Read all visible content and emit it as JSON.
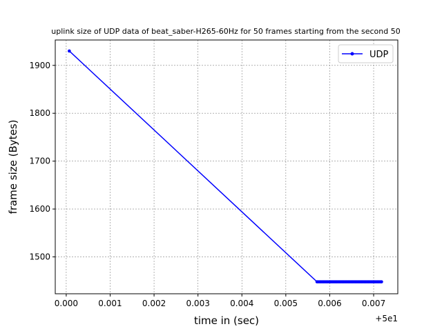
{
  "chart_data": {
    "type": "line",
    "title": "uplink size of UDP data of beat_saber-H265-60Hz for 50 frames starting from the second 50",
    "xlabel": "time in (sec)",
    "ylabel": "frame size (Bytes)",
    "x_offset_label": "+5e1",
    "xlim": [
      49.99975,
      50.00755
    ],
    "ylim": [
      1423,
      1953
    ],
    "x_ticks": [
      50.0,
      50.001,
      50.002,
      50.003,
      50.004,
      50.005,
      50.006,
      50.007
    ],
    "x_tick_labels": [
      "0.000",
      "0.001",
      "0.002",
      "0.003",
      "0.004",
      "0.005",
      "0.006",
      "0.007"
    ],
    "y_ticks": [
      1500,
      1600,
      1700,
      1800,
      1900
    ],
    "y_tick_labels": [
      "1500",
      "1600",
      "1700",
      "1800",
      "1900"
    ],
    "grid": true,
    "legend_position": "top-right",
    "series": [
      {
        "name": "UDP",
        "color": "#0000ff",
        "x": [
          50.00007,
          50.00571,
          50.00574,
          50.00577,
          50.0058,
          50.00583,
          50.00586,
          50.00589,
          50.00592,
          50.00595,
          50.00598,
          50.00601,
          50.00604,
          50.00607,
          50.0061,
          50.00613,
          50.00616,
          50.00619,
          50.00622,
          50.00625,
          50.00628,
          50.00631,
          50.00634,
          50.00637,
          50.0064,
          50.00643,
          50.00646,
          50.00649,
          50.00652,
          50.00655,
          50.00658,
          50.00661,
          50.00664,
          50.00667,
          50.0067,
          50.00673,
          50.00676,
          50.00679,
          50.00682,
          50.00685,
          50.00688,
          50.00691,
          50.00694,
          50.00697,
          50.007,
          50.00703,
          50.00706,
          50.00709,
          50.00712,
          50.00715,
          50.00718
        ],
        "y": [
          1930,
          1448,
          1448,
          1448,
          1448,
          1448,
          1448,
          1448,
          1448,
          1448,
          1448,
          1448,
          1448,
          1448,
          1448,
          1448,
          1448,
          1448,
          1448,
          1448,
          1448,
          1448,
          1448,
          1448,
          1448,
          1448,
          1448,
          1448,
          1448,
          1448,
          1448,
          1448,
          1448,
          1448,
          1448,
          1448,
          1448,
          1448,
          1448,
          1448,
          1448,
          1448,
          1448,
          1448,
          1448,
          1448,
          1448,
          1448,
          1448,
          1448,
          1448
        ]
      }
    ]
  }
}
